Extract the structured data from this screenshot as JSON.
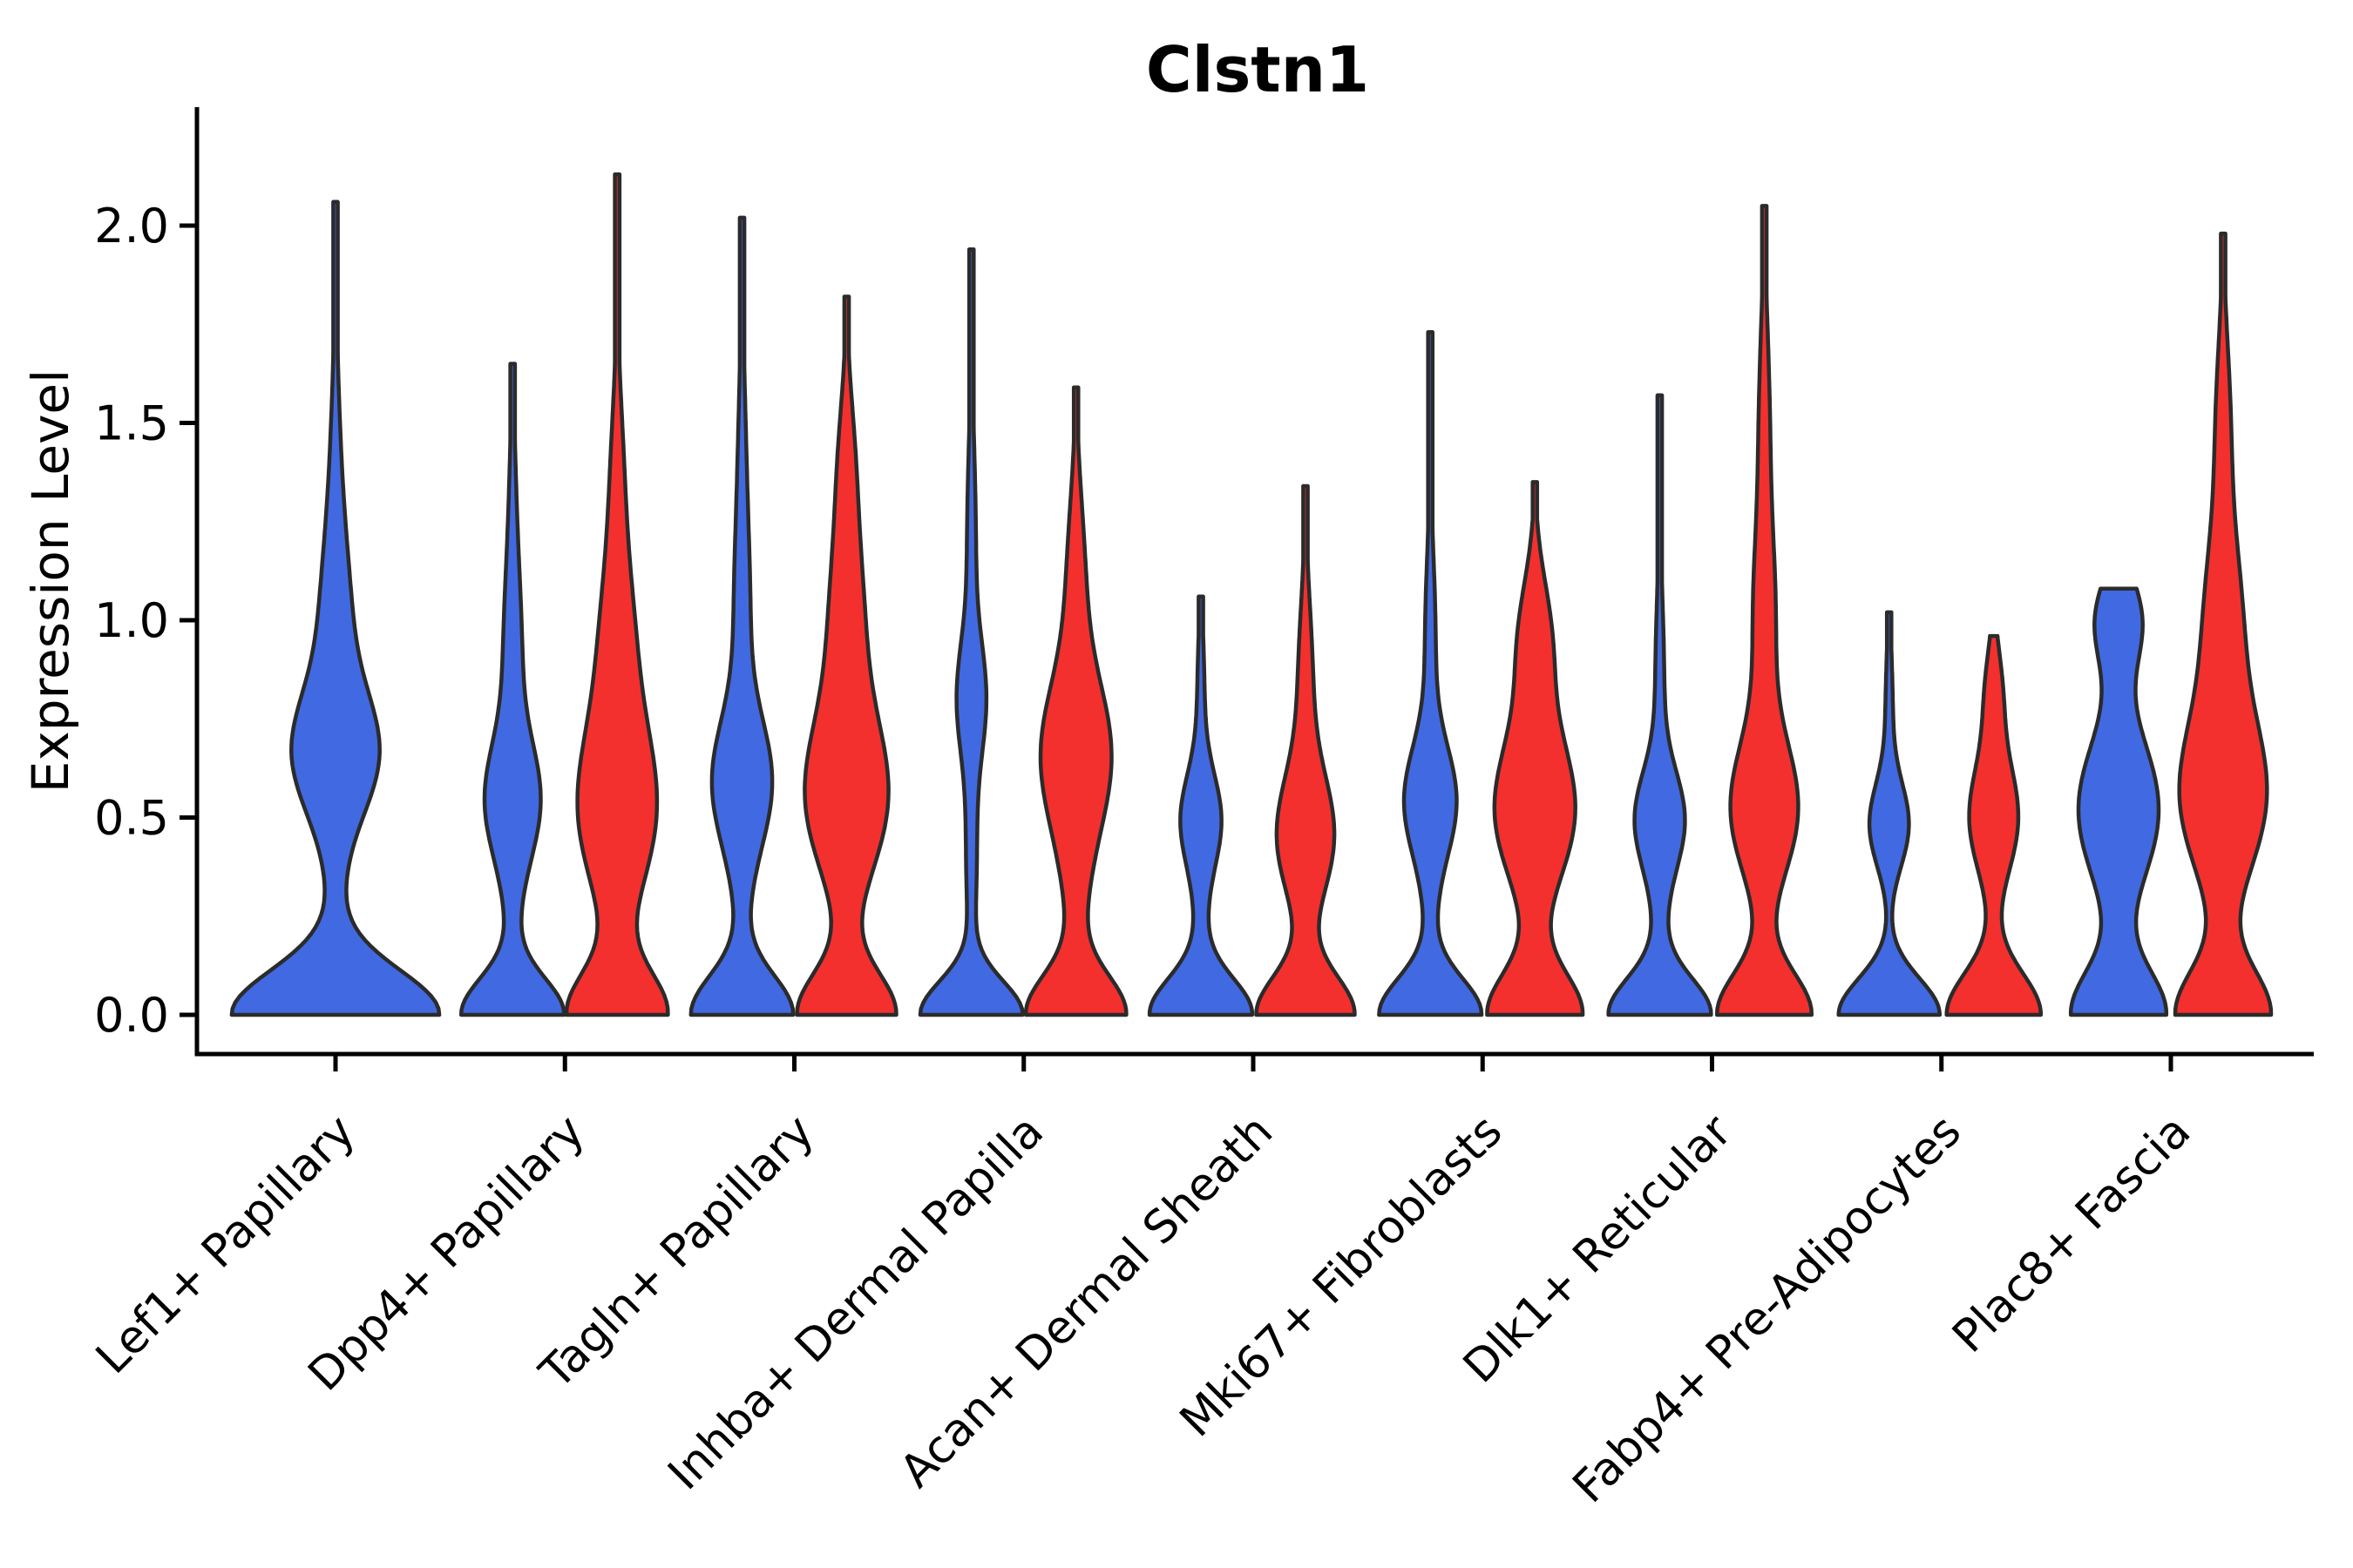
{
  "chart_data": {
    "type": "violin",
    "title": "Clstn1",
    "ylabel": "Expression Level",
    "xlabel": "",
    "ylim": [
      0.0,
      2.3
    ],
    "yticks": [
      {
        "value": 0.0,
        "label": "0.0"
      },
      {
        "value": 0.5,
        "label": "0.5"
      },
      {
        "value": 1.0,
        "label": "1.0"
      },
      {
        "value": 1.5,
        "label": "1.5"
      },
      {
        "value": 2.0,
        "label": "2.0"
      }
    ],
    "grid": false,
    "legend_position": "none",
    "categories": [
      "Lef1+ Papillary",
      "Dpp4+ Papillary",
      "Tagln+ Papillary",
      "Inhba+ Dermal Papilla",
      "Acan+ Dermal Sheath",
      "Mki67+ Fibroblasts",
      "Dlk1+ Reticular",
      "Fabp4+ Pre-Adipocytes",
      "Plac8+ Fascia"
    ],
    "colors": {
      "blue": "#4169E1",
      "red": "#F3302E",
      "outline": "#2B2B2B",
      "axis": "#000000",
      "text": "#000000",
      "background": "#ffffff"
    },
    "violins": [
      {
        "category_index": 0,
        "category": "Lef1+ Papillary",
        "side": "single",
        "color": "blue",
        "max_value": 2.06,
        "profile": [
          [
            118,
            0,
            0.16
          ],
          [
            8,
            0.42,
            0.3
          ],
          [
            40,
            0.66,
            0.21
          ],
          [
            15,
            0.95,
            0.3
          ],
          [
            6,
            1.3,
            0.4
          ]
        ]
      },
      {
        "category_index": 1,
        "category": "Dpp4+ Papillary",
        "side": "left",
        "color": "blue",
        "max_value": 1.65,
        "profile": [
          [
            58,
            0,
            0.13
          ],
          [
            7,
            0.35,
            0.25
          ],
          [
            26,
            0.55,
            0.2
          ],
          [
            10,
            0.9,
            0.3
          ],
          [
            3,
            1.3,
            0.3
          ]
        ]
      },
      {
        "category_index": 1,
        "category": "Dpp4+ Papillary",
        "side": "right",
        "color": "red",
        "max_value": 2.13,
        "profile": [
          [
            56,
            0,
            0.15
          ],
          [
            44,
            0.52,
            0.3
          ],
          [
            16,
            0.95,
            0.28
          ],
          [
            7,
            1.35,
            0.3
          ]
        ]
      },
      {
        "category_index": 2,
        "category": "Tagln+ Papillary",
        "side": "left",
        "color": "blue",
        "max_value": 2.02,
        "profile": [
          [
            58,
            0,
            0.14
          ],
          [
            7,
            0.38,
            0.25
          ],
          [
            30,
            0.6,
            0.22
          ],
          [
            8,
            1.0,
            0.3
          ],
          [
            4,
            1.4,
            0.35
          ]
        ]
      },
      {
        "category_index": 2,
        "category": "Tagln+ Papillary",
        "side": "right",
        "color": "red",
        "max_value": 1.82,
        "profile": [
          [
            56,
            0,
            0.15
          ],
          [
            46,
            0.55,
            0.28
          ],
          [
            18,
            1.0,
            0.3
          ],
          [
            8,
            1.4,
            0.25
          ]
        ]
      },
      {
        "category_index": 3,
        "category": "Inhba+ Dermal Papilla",
        "side": "left",
        "color": "blue",
        "max_value": 1.94,
        "profile": [
          [
            58,
            0,
            0.12
          ],
          [
            6,
            0.4,
            0.28
          ],
          [
            15,
            0.8,
            0.2
          ],
          [
            5,
            1.2,
            0.35
          ]
        ]
      },
      {
        "category_index": 3,
        "category": "Inhba+ Dermal Papilla",
        "side": "right",
        "color": "red",
        "max_value": 1.59,
        "profile": [
          [
            56,
            0,
            0.14
          ],
          [
            9,
            0.33,
            0.25
          ],
          [
            38,
            0.66,
            0.26
          ],
          [
            10,
            1.1,
            0.3
          ]
        ]
      },
      {
        "category_index": 4,
        "category": "Acan+ Dermal Sheath",
        "side": "left",
        "color": "blue",
        "max_value": 1.06,
        "profile": [
          [
            58,
            0,
            0.13
          ],
          [
            6,
            0.3,
            0.22
          ],
          [
            20,
            0.5,
            0.16
          ],
          [
            4,
            0.8,
            0.25
          ]
        ]
      },
      {
        "category_index": 4,
        "category": "Acan+ Dermal Sheath",
        "side": "right",
        "color": "red",
        "max_value": 1.34,
        "profile": [
          [
            56,
            0,
            0.14
          ],
          [
            32,
            0.45,
            0.22
          ],
          [
            8,
            0.85,
            0.28
          ]
        ]
      },
      {
        "category_index": 5,
        "category": "Mki67+ Fibroblasts",
        "side": "left",
        "color": "blue",
        "max_value": 1.73,
        "profile": [
          [
            58,
            0,
            0.13
          ],
          [
            6,
            0.35,
            0.25
          ],
          [
            26,
            0.55,
            0.19
          ],
          [
            6,
            0.95,
            0.3
          ]
        ]
      },
      {
        "category_index": 5,
        "category": "Mki67+ Fibroblasts",
        "side": "right",
        "color": "red",
        "max_value": 1.35,
        "profile": [
          [
            54,
            0,
            0.15
          ],
          [
            46,
            0.52,
            0.26
          ],
          [
            18,
            0.95,
            0.22
          ]
        ]
      },
      {
        "category_index": 6,
        "category": "Dlk1+ Reticular",
        "side": "left",
        "color": "blue",
        "max_value": 1.57,
        "profile": [
          [
            58,
            0,
            0.13
          ],
          [
            6,
            0.3,
            0.22
          ],
          [
            25,
            0.5,
            0.17
          ],
          [
            5,
            0.85,
            0.3
          ]
        ]
      },
      {
        "category_index": 6,
        "category": "Dlk1+ Reticular",
        "side": "right",
        "color": "red",
        "max_value": 2.05,
        "profile": [
          [
            54,
            0,
            0.15
          ],
          [
            38,
            0.52,
            0.24
          ],
          [
            12,
            1.0,
            0.3
          ],
          [
            6,
            1.5,
            0.35
          ]
        ]
      },
      {
        "category_index": 7,
        "category": "Fabp4+ Pre-Adipocytes",
        "side": "left",
        "color": "blue",
        "max_value": 1.02,
        "profile": [
          [
            58,
            0,
            0.13
          ],
          [
            22,
            0.48,
            0.15
          ],
          [
            4,
            0.78,
            0.22
          ]
        ]
      },
      {
        "category_index": 7,
        "category": "Fabp4+ Pre-Adipocytes",
        "side": "right",
        "color": "red",
        "max_value": 0.96,
        "profile": [
          [
            54,
            0,
            0.15
          ],
          [
            28,
            0.5,
            0.2
          ],
          [
            9,
            0.82,
            0.16
          ]
        ]
      },
      {
        "category_index": 8,
        "category": "Plac8+ Fascia",
        "side": "left",
        "color": "blue",
        "max_value": 1.08,
        "profile": [
          [
            54,
            0,
            0.16
          ],
          [
            46,
            0.52,
            0.26
          ],
          [
            26,
            1.0,
            0.16
          ]
        ]
      },
      {
        "category_index": 8,
        "category": "Plac8+ Fascia",
        "side": "right",
        "color": "red",
        "max_value": 1.98,
        "profile": [
          [
            54,
            0,
            0.16
          ],
          [
            48,
            0.55,
            0.28
          ],
          [
            20,
            1.0,
            0.3
          ],
          [
            8,
            1.5,
            0.3
          ]
        ]
      }
    ]
  }
}
